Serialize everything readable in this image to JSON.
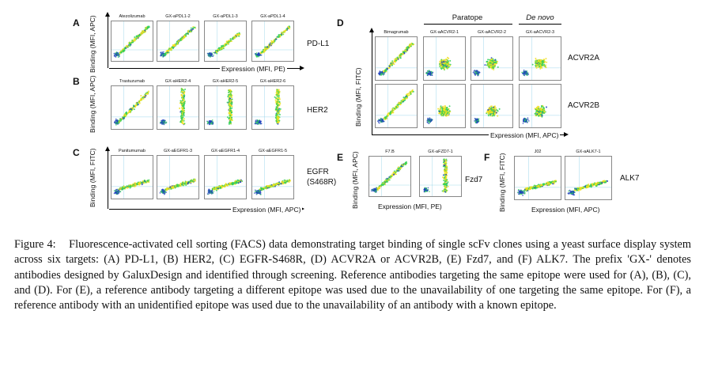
{
  "figure": {
    "panel_A": {
      "letter": "A",
      "ylabel": "Binding (MFI, APC)",
      "xlabel": "Expression (MFI, PE)",
      "target": "PD-L1",
      "clones": [
        "Atezolizumab",
        "GX-aPDL1-2",
        "GX-aPDL1-3",
        "GX-aPDL1-4"
      ]
    },
    "panel_B": {
      "letter": "B",
      "ylabel": "Binding (MFI, APC)",
      "target": "HER2",
      "clones": [
        "Trastuzumab",
        "GX-aHER2-4",
        "GX-aHER2-5",
        "GX-aHER2-6"
      ]
    },
    "panel_C": {
      "letter": "C",
      "ylabel": "Binding (MFI, FITC)",
      "xlabel": "Expression (MFI, APC)",
      "target_line1": "EGFR",
      "target_line2": "(S468R)",
      "clones": [
        "Panitumumab",
        "GX-aEGFR1-3",
        "GX-aEGFR1-4",
        "GX-aEGFR1-5"
      ]
    },
    "panel_D": {
      "letter": "D",
      "ylabel": "Binding (MFI, FITC)",
      "xlabel": "Expression (MFI, APC)",
      "group_paratope": "Paratope",
      "group_denovo": "De novo",
      "clones": [
        "Bimagrumab",
        "GX-aACVR2-1",
        "GX-aACVR2-2",
        "GX-aACVR2-3"
      ],
      "targets": [
        "ACVR2A",
        "ACVR2B"
      ]
    },
    "panel_E": {
      "letter": "E",
      "ylabel": "Binding (MFI, APC)",
      "xlabel": "Expression (MFI, PE)",
      "target": "Fzd7",
      "clones": [
        "F7.B",
        "GX-aFZD7-1"
      ]
    },
    "panel_F": {
      "letter": "F",
      "ylabel": "Binding (MFI, FITC)",
      "xlabel": "Expression (MFI, APC)",
      "target": "ALK7",
      "clones": [
        "J02",
        "GX-aALK7-1"
      ]
    },
    "colors": {
      "density_low": "#1f3fbf",
      "density_mid": "#2fd05a",
      "density_high": "#f0e020",
      "gate": "#8fd0e8"
    }
  },
  "caption": {
    "label": "Figure 4:",
    "text": "Fluorescence-activated cell sorting (FACS) data demonstrating target binding of single scFv clones using a yeast surface display system across six targets: (A) PD-L1, (B) HER2, (C) EGFR-S468R, (D) ACVR2A or ACVR2B, (E) Fzd7, and (F) ALK7. The prefix 'GX-' denotes antibodies designed by GaluxDesign and identified through screening. Reference antibodies targeting the same epitope were used for (A), (B), (C), and (D). For (E), a reference antibody targeting a different epitope was used due to the unavailability of one targeting the same epitope. For (F), a reference antibody with an unidentified epitope was used due to the unavailability of an antibody with a known epitope."
  }
}
